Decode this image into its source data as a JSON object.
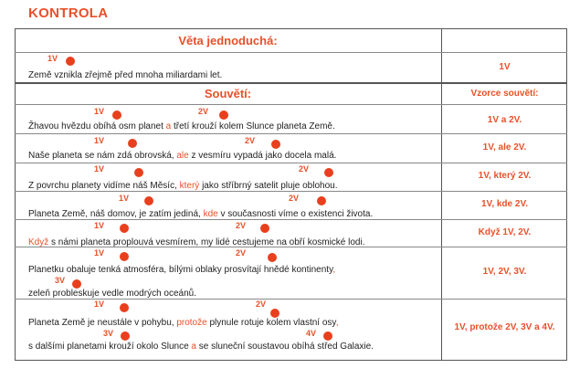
{
  "heading": "KONTROLA",
  "simple": {
    "title": "Věta jednoduchá:",
    "label": "1V",
    "sentence": "Země vznikla zřejmě před mnoha miliardami let.",
    "formula": "1V"
  },
  "compound": {
    "title": "Souvětí:",
    "formulas_header": "Vzorce souvětí:",
    "rows": [
      {
        "labels": [
          "1V",
          "2V"
        ],
        "parts": [
          "Žhavou hvězdu obíhá osm planet ",
          "a",
          " třetí krouží kolem Slunce planeta Země."
        ],
        "formula": "1V a 2V."
      },
      {
        "labels": [
          "1V",
          "2V"
        ],
        "parts": [
          "Naše planeta se nám zdá obrovská, ",
          "ale",
          " z vesmíru vypadá jako docela malá."
        ],
        "formula": "1V, ale 2V."
      },
      {
        "labels": [
          "1V",
          "2V"
        ],
        "parts": [
          "Z povrchu planety vidíme náš Měsíc, ",
          "který",
          " jako stříbrný satelit pluje oblohou."
        ],
        "formula": "1V, který 2V."
      },
      {
        "labels": [
          "1V",
          "2V"
        ],
        "parts": [
          "Planeta Země, náš domov, je zatím jediná, ",
          "kde",
          " v současnosti víme o existenci života."
        ],
        "formula": "1V, kde 2V."
      },
      {
        "labels": [
          "1V",
          "2V"
        ],
        "parts": [
          "",
          "Když",
          " s námi planeta proplouvá vesmírem, my lidé cestujeme na obří kosmické lodi."
        ],
        "formula": "Když 1V, 2V."
      },
      {
        "labels": [
          "1V",
          "2V",
          "3V"
        ],
        "parts": [
          "Planetku obaluje tenká atmosféra, bílými oblaky prosvítají hnědé kontinenty",
          ","
        ],
        "line2": "zeleň probleskuje vedle modrých oceánů.",
        "formula": "1V, 2V, 3V."
      },
      {
        "labels": [
          "1V",
          "2V",
          "3V",
          "4V"
        ],
        "parts": [
          "Planeta Země je neustále v pohybu, ",
          "protože",
          " plynule rotuje kolem vlastní osy",
          ","
        ],
        "line2_parts": [
          "s dalšími planetami krouží okolo Slunce ",
          "a",
          " se sluneční soustavou obíhá střed Galaxie."
        ],
        "formula": "1V, protože 2V, 3V a 4V."
      }
    ]
  },
  "colors": {
    "accent": "#e8502a",
    "dot": "#e8401e",
    "text": "#222222"
  }
}
